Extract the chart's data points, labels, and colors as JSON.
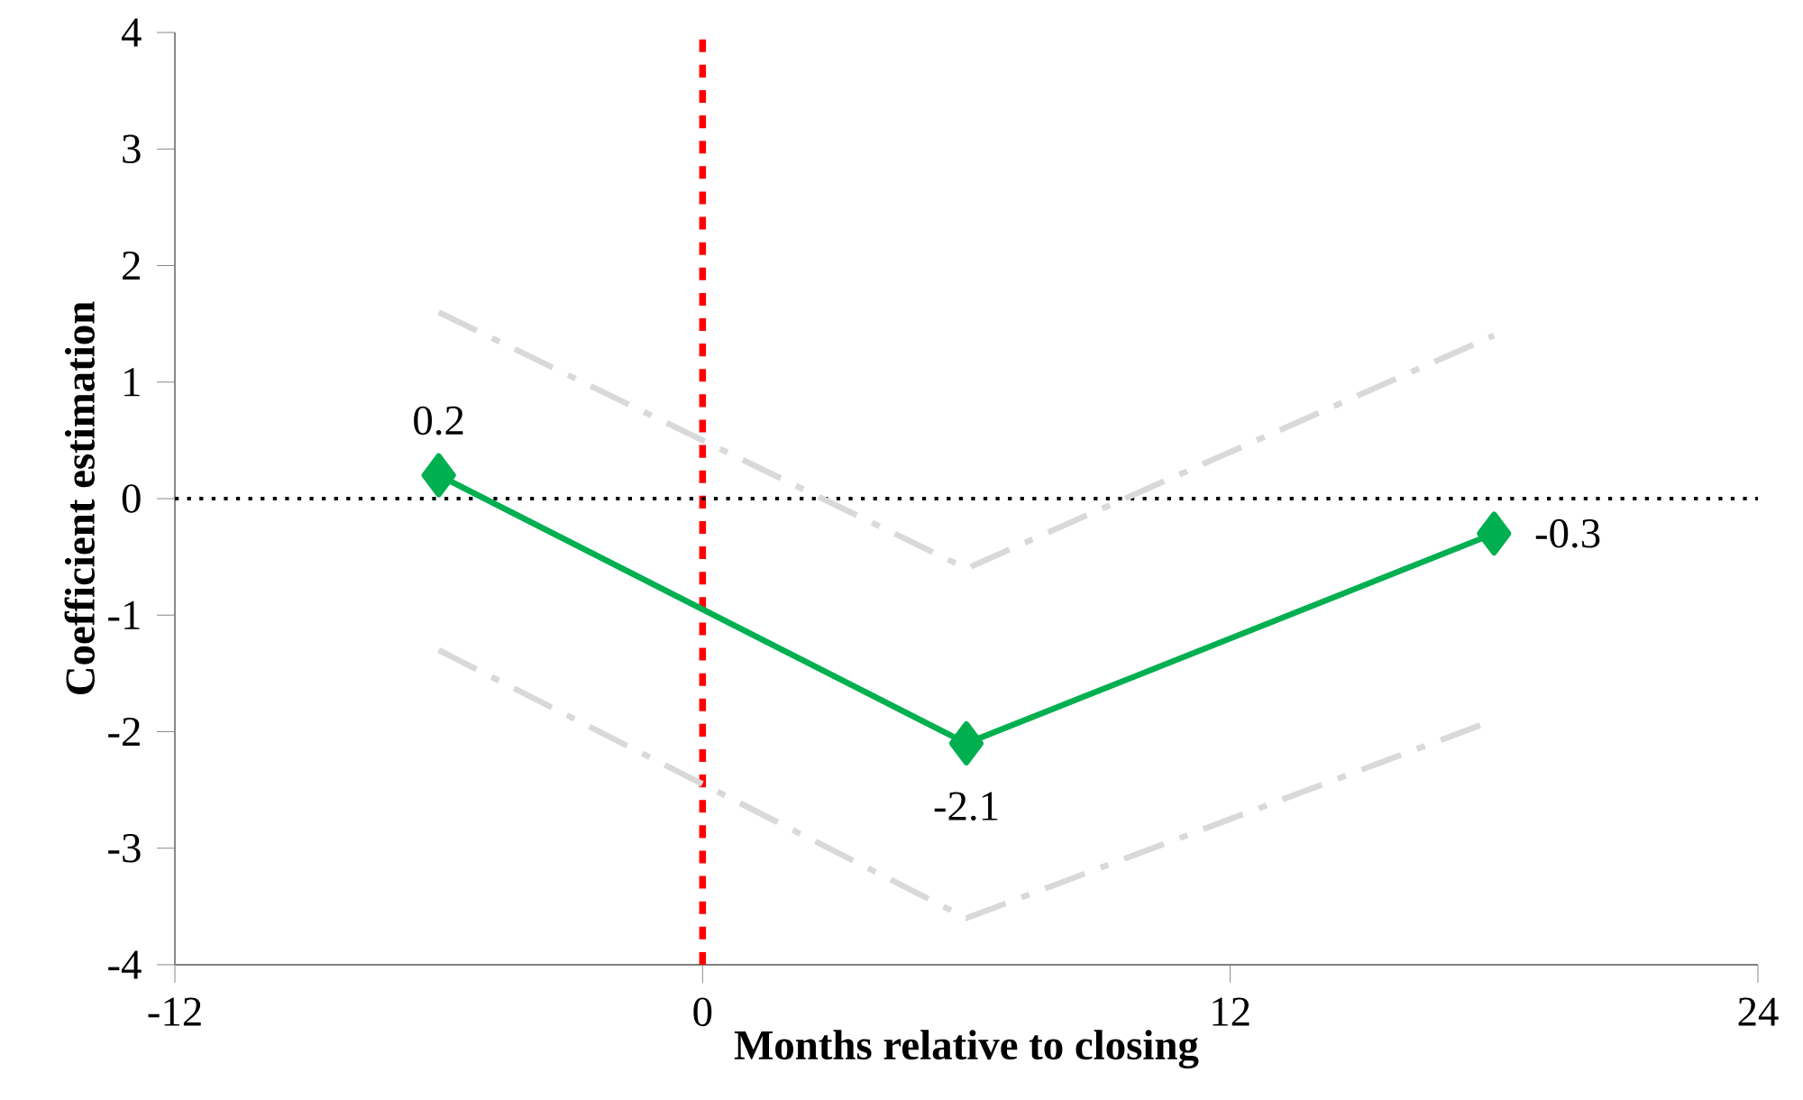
{
  "chart_data": {
    "type": "line",
    "xlabel": "Months relative to closing",
    "ylabel": "Coefficient estimation",
    "x": [
      -6,
      6,
      18
    ],
    "series": [
      {
        "color": "#d9d9d9",
        "values": [
          1.6,
          -0.6,
          1.4
        ],
        "line_style": "dashed",
        "marker": "none"
      },
      {
        "color": "#d9d9d9",
        "values": [
          -1.3,
          -3.6,
          -1.9
        ],
        "line_style": "dashed",
        "marker": "none"
      },
      {
        "color": "#00b050",
        "values": [
          0.2,
          -2.1,
          -0.3
        ],
        "value_labels": [
          "0.2",
          "-2.1",
          "-0.3"
        ]
      }
    ],
    "xlim": [
      -12,
      24
    ],
    "xticks": [
      -12,
      0,
      12,
      24
    ],
    "ylim": [
      -4,
      4
    ],
    "yticks": [
      -4,
      -3,
      -2,
      -1,
      0,
      1,
      2,
      3,
      4
    ],
    "ref_lines": [
      {
        "axis": "x",
        "value": 0,
        "color": "#ff0000",
        "line_style": "dashed"
      },
      {
        "axis": "y",
        "value": 0,
        "color": "#000000",
        "line_style": "dotted"
      }
    ],
    "marker": "diamond",
    "line_style": "solid"
  }
}
